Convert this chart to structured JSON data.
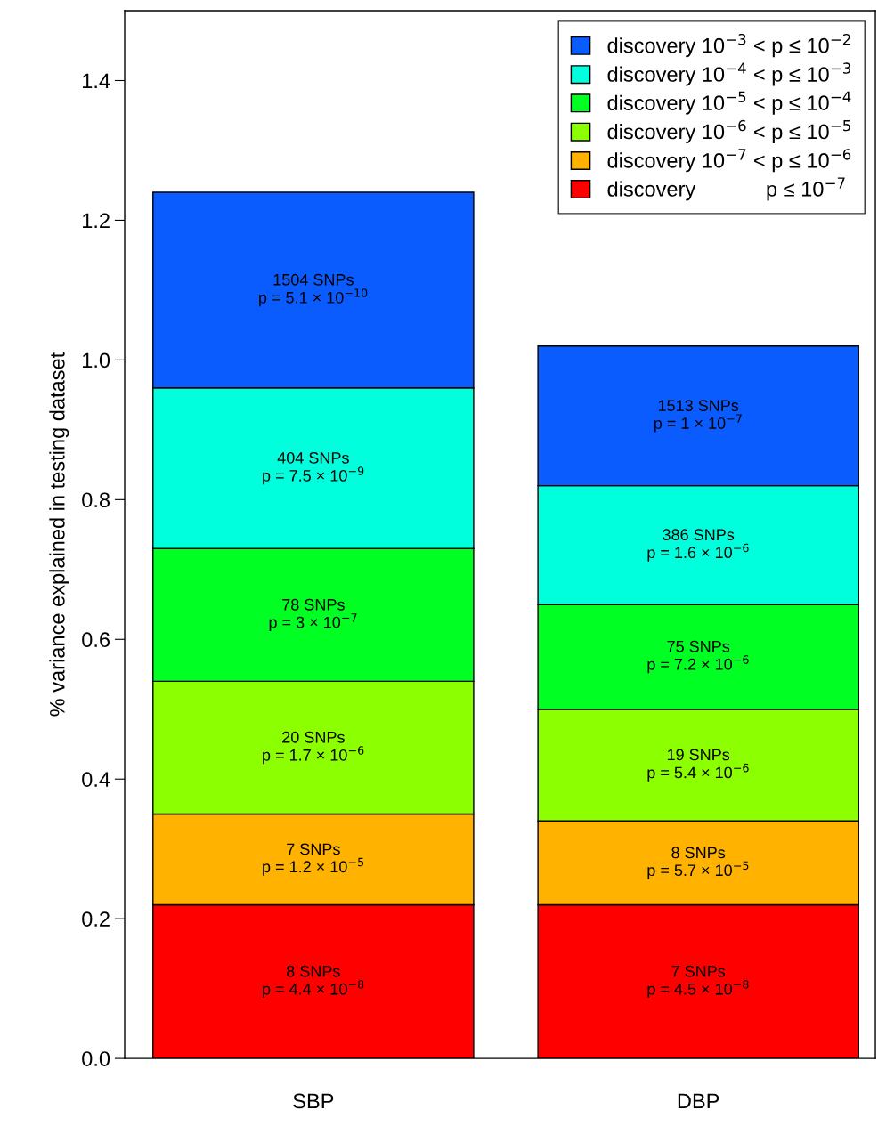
{
  "chart_data": {
    "type": "bar",
    "stacked": true,
    "ylabel": "% variance explained in testing dataset",
    "categories": [
      "SBP",
      "DBP"
    ],
    "ylim": [
      0,
      1.5
    ],
    "yticks": [
      {
        "value": 0,
        "label": "0.0"
      },
      {
        "value": 0.2,
        "label": "0.2"
      },
      {
        "value": 0.4,
        "label": "0.4"
      },
      {
        "value": 0.6,
        "label": "0.6"
      },
      {
        "value": 0.8,
        "label": "0.8"
      },
      {
        "value": 1.0,
        "label": "1.0"
      },
      {
        "value": 1.2,
        "label": "1.2"
      },
      {
        "value": 1.4,
        "label": "1.4"
      }
    ],
    "grid": false,
    "legend": "top right",
    "annotations": [
      "8 SNPs\np = 4.4 × 10$^{−8}$",
      "7 SNPs\np = 4.5 × 10$^{−8}$",
      "7 SNPs\np = 1.2 × 10$^{−5}$",
      "8 SNPs\np = 5.7 × 10$^{−5}$",
      "20 SNPs\np = 1.7 × 10$^{−6}$",
      "19 SNPs\np = 5.4 × 10$^{−6}$",
      "78 SNPs\np = 3 × 10$^{−7}$",
      "75 SNPs\np = 7.2 × 10$^{−6}$",
      "404 SNPs\np = 7.5 × 10$^{−9}$",
      "386 SNPs\np = 1.6 × 10$^{−6}$",
      "1504 SNPs\np = 5.1 × 10$^{−10}$",
      "1513 SNPs\np = 1 × 10$^{−7}$"
    ],
    "series": [
      {
        "name": "discovery            p ≤ 10$^{−7}$",
        "color": "#ff0000",
        "values": [
          0.22,
          0.22
        ]
      },
      {
        "name": "discovery 10$^{−7}$ < p ≤ 10$^{−6}$",
        "color": "#ffb300",
        "values": [
          0.13,
          0.12
        ]
      },
      {
        "name": "discovery 10$^{−6}$ < p ≤ 10$^{−5}$",
        "color": "#8cff00",
        "values": [
          0.19,
          0.16
        ]
      },
      {
        "name": "discovery 10$^{−5}$ < p ≤ 10$^{−4}$",
        "color": "#00ff22",
        "values": [
          0.19,
          0.15
        ]
      },
      {
        "name": "discovery 10$^{−4}$ < p ≤ 10$^{−3}$",
        "color": "#00ffdd",
        "values": [
          0.23,
          0.17
        ]
      },
      {
        "name": "discovery 10$^{−3}$ < p ≤ 10$^{−2}$",
        "color": "#0a5cff",
        "values": [
          0.28,
          0.2
        ]
      }
    ]
  }
}
